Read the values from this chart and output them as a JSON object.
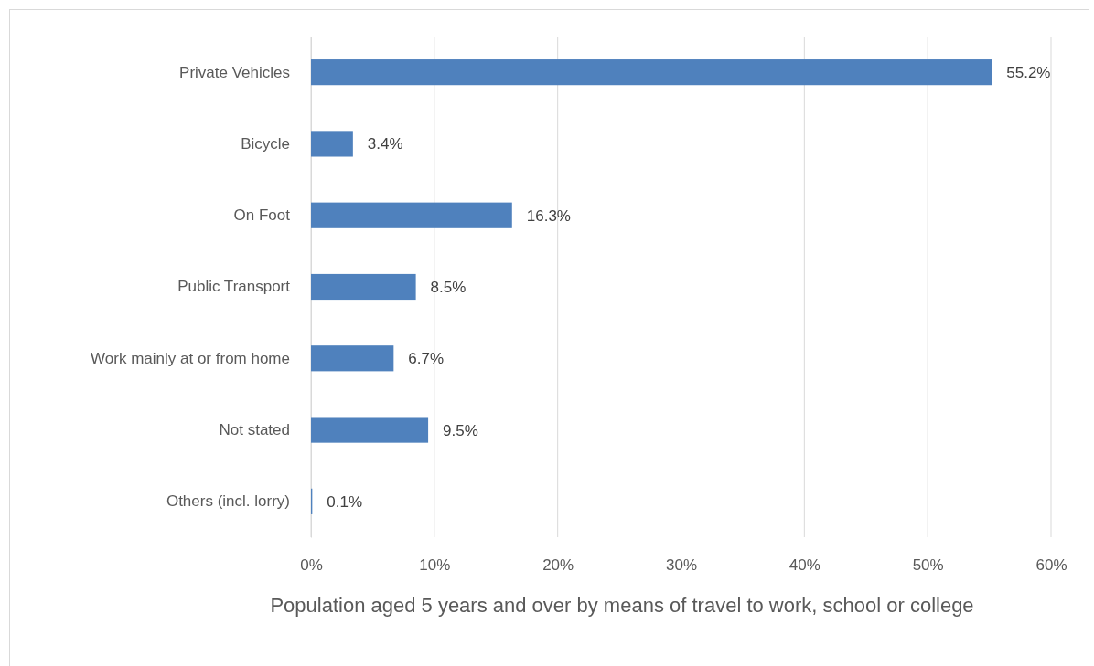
{
  "chart_data": {
    "type": "bar",
    "orientation": "horizontal",
    "xlabel": "Population aged 5 years and over by means of travel to work, school or college",
    "categories": [
      "Private Vehicles",
      "Bicycle",
      "On Foot",
      "Public Transport",
      "Work mainly at or from home",
      "Not stated",
      "Others (incl. lorry)"
    ],
    "values": [
      55.2,
      3.4,
      16.3,
      8.5,
      6.7,
      9.5,
      0.1
    ],
    "value_labels": [
      "55.2%",
      "3.4%",
      "16.3%",
      "8.5%",
      "6.7%",
      "9.5%",
      "0.1%"
    ],
    "color": "#4f81bd",
    "xlim": [
      0,
      60
    ],
    "xticks": [
      {
        "value": 0,
        "label": "0%"
      },
      {
        "value": 10,
        "label": "10%"
      },
      {
        "value": 20,
        "label": "20%"
      },
      {
        "value": 30,
        "label": "30%"
      },
      {
        "value": 40,
        "label": "40%"
      },
      {
        "value": 50,
        "label": "50%"
      },
      {
        "value": 60,
        "label": "60%"
      }
    ],
    "grid": "x"
  }
}
